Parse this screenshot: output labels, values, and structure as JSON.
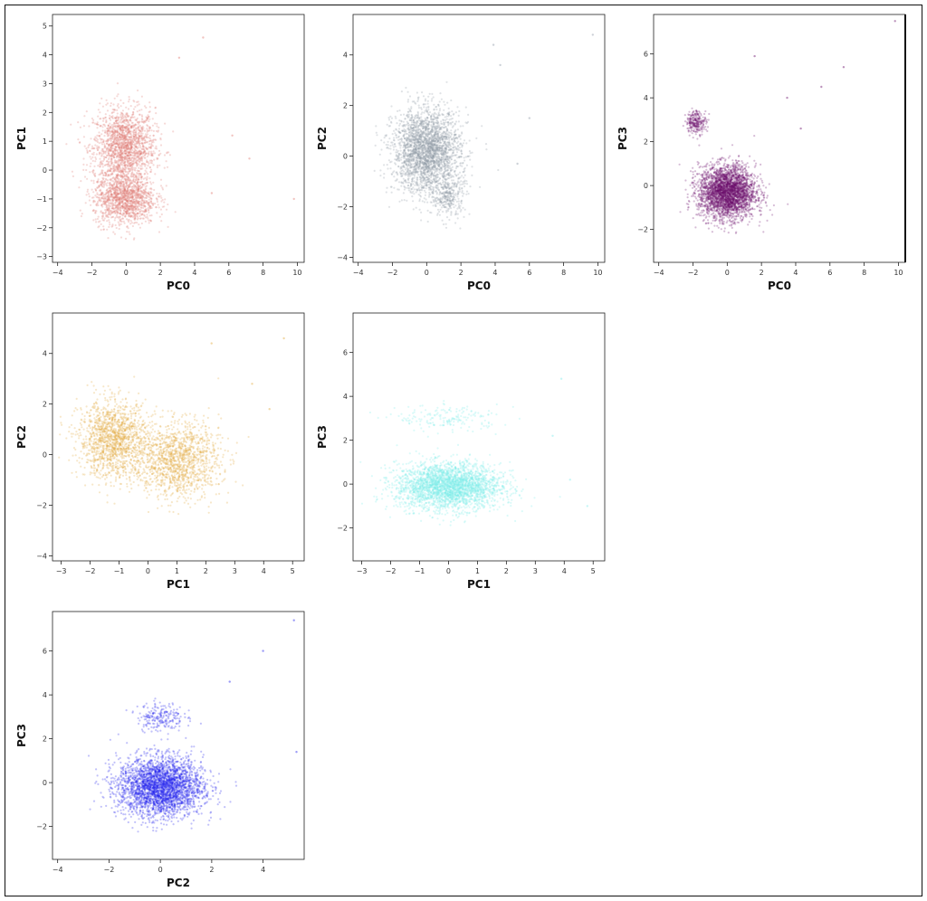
{
  "chart_data": [
    {
      "type": "scatter",
      "xlabel": "PC0",
      "ylabel": "PC1",
      "xlim": [
        -4.3,
        10.4
      ],
      "ylim": [
        -3.2,
        5.4
      ],
      "xticks": [
        -4,
        -2,
        0,
        2,
        4,
        6,
        8,
        10
      ],
      "yticks": [
        -3,
        -2,
        -1,
        0,
        1,
        2,
        3,
        4,
        5
      ],
      "color": "#e07a72",
      "clusters": [
        {
          "center": [
            -0.1,
            0.8
          ],
          "spread": [
            1.2,
            0.9
          ],
          "n": 1700
        },
        {
          "center": [
            -0.1,
            -1.0
          ],
          "spread": [
            1.2,
            0.6
          ],
          "n": 1300
        }
      ],
      "sample_points": [
        [
          9.8,
          -1.0
        ],
        [
          6.2,
          1.2
        ],
        [
          4.5,
          4.6
        ],
        [
          3.1,
          3.9
        ],
        [
          5.0,
          -0.8
        ],
        [
          7.2,
          0.4
        ]
      ]
    },
    {
      "type": "scatter",
      "xlabel": "PC0",
      "ylabel": "PC2",
      "xlim": [
        -4.3,
        10.4
      ],
      "ylim": [
        -4.2,
        5.6
      ],
      "xticks": [
        -4,
        -2,
        0,
        2,
        4,
        6,
        8,
        10
      ],
      "yticks": [
        -4,
        -2,
        0,
        2,
        4
      ],
      "color": "#8e9aa6",
      "clusters": [
        {
          "center": [
            0.0,
            0.2
          ],
          "spread": [
            1.3,
            1.1
          ],
          "n": 2600
        },
        {
          "center": [
            1.3,
            -1.6
          ],
          "spread": [
            0.6,
            0.6
          ],
          "n": 300
        }
      ],
      "sample_points": [
        [
          9.7,
          4.8
        ],
        [
          6.0,
          1.5
        ],
        [
          4.3,
          3.6
        ],
        [
          5.3,
          -0.3
        ],
        [
          3.9,
          4.4
        ]
      ]
    },
    {
      "type": "scatter",
      "xlabel": "PC0",
      "ylabel": "PC3",
      "xlim": [
        -4.3,
        10.4
      ],
      "ylim": [
        -3.5,
        7.8
      ],
      "xticks": [
        -4,
        -2,
        0,
        2,
        4,
        6,
        8,
        10
      ],
      "yticks": [
        -2,
        0,
        2,
        4,
        6
      ],
      "color": "#6b0f6b",
      "clusters": [
        {
          "center": [
            0.0,
            -0.3
          ],
          "spread": [
            1.1,
            0.8
          ],
          "n": 3000
        },
        {
          "center": [
            -1.8,
            2.9
          ],
          "spread": [
            0.4,
            0.35
          ],
          "n": 250
        }
      ],
      "sample_points": [
        [
          9.8,
          7.5
        ],
        [
          6.8,
          5.4
        ],
        [
          1.6,
          5.9
        ],
        [
          3.5,
          4.0
        ],
        [
          5.5,
          4.5
        ],
        [
          4.3,
          2.6
        ]
      ]
    },
    {
      "type": "scatter",
      "xlabel": "PC1",
      "ylabel": "PC2",
      "xlim": [
        -3.3,
        5.4
      ],
      "ylim": [
        -4.2,
        5.6
      ],
      "xticks": [
        -3,
        -2,
        -1,
        0,
        1,
        2,
        3,
        4,
        5
      ],
      "yticks": [
        -4,
        -2,
        0,
        2,
        4
      ],
      "color": "#e3a93c",
      "clusters": [
        {
          "center": [
            -1.2,
            0.6
          ],
          "spread": [
            0.8,
            1.0
          ],
          "n": 1400
        },
        {
          "center": [
            1.0,
            -0.2
          ],
          "spread": [
            1.0,
            1.0
          ],
          "n": 1400
        }
      ],
      "sample_points": [
        [
          4.7,
          4.6
        ],
        [
          3.6,
          2.8
        ],
        [
          2.2,
          4.4
        ],
        [
          4.2,
          1.8
        ]
      ]
    },
    {
      "type": "scatter",
      "xlabel": "PC1",
      "ylabel": "PC3",
      "xlim": [
        -3.3,
        5.4
      ],
      "ylim": [
        -3.5,
        7.8
      ],
      "xticks": [
        -3,
        -2,
        -1,
        0,
        1,
        2,
        3,
        4,
        5
      ],
      "yticks": [
        -2,
        0,
        2,
        4,
        6
      ],
      "color": "#7eecea",
      "clusters": [
        {
          "center": [
            0.0,
            -0.1
          ],
          "spread": [
            1.2,
            0.7
          ],
          "n": 3000
        },
        {
          "center": [
            0.0,
            3.0
          ],
          "spread": [
            1.2,
            0.4
          ],
          "n": 180
        }
      ],
      "sample_points": [
        [
          4.2,
          0.2
        ],
        [
          4.8,
          -1.0
        ],
        [
          3.6,
          2.2
        ],
        [
          3.9,
          4.8
        ]
      ]
    },
    {
      "type": "scatter",
      "xlabel": "PC2",
      "ylabel": "PC3",
      "xlim": [
        -4.2,
        5.6
      ],
      "ylim": [
        -3.5,
        7.8
      ],
      "xticks": [
        -4,
        -2,
        0,
        2,
        4
      ],
      "yticks": [
        -2,
        0,
        2,
        4,
        6
      ],
      "color": "#2222ee",
      "clusters": [
        {
          "center": [
            0.0,
            -0.2
          ],
          "spread": [
            1.1,
            0.9
          ],
          "n": 3000
        },
        {
          "center": [
            0.0,
            3.0
          ],
          "spread": [
            0.6,
            0.45
          ],
          "n": 220
        }
      ],
      "sample_points": [
        [
          5.2,
          7.4
        ],
        [
          4.0,
          6.0
        ],
        [
          5.3,
          1.4
        ],
        [
          2.7,
          4.6
        ]
      ]
    }
  ]
}
